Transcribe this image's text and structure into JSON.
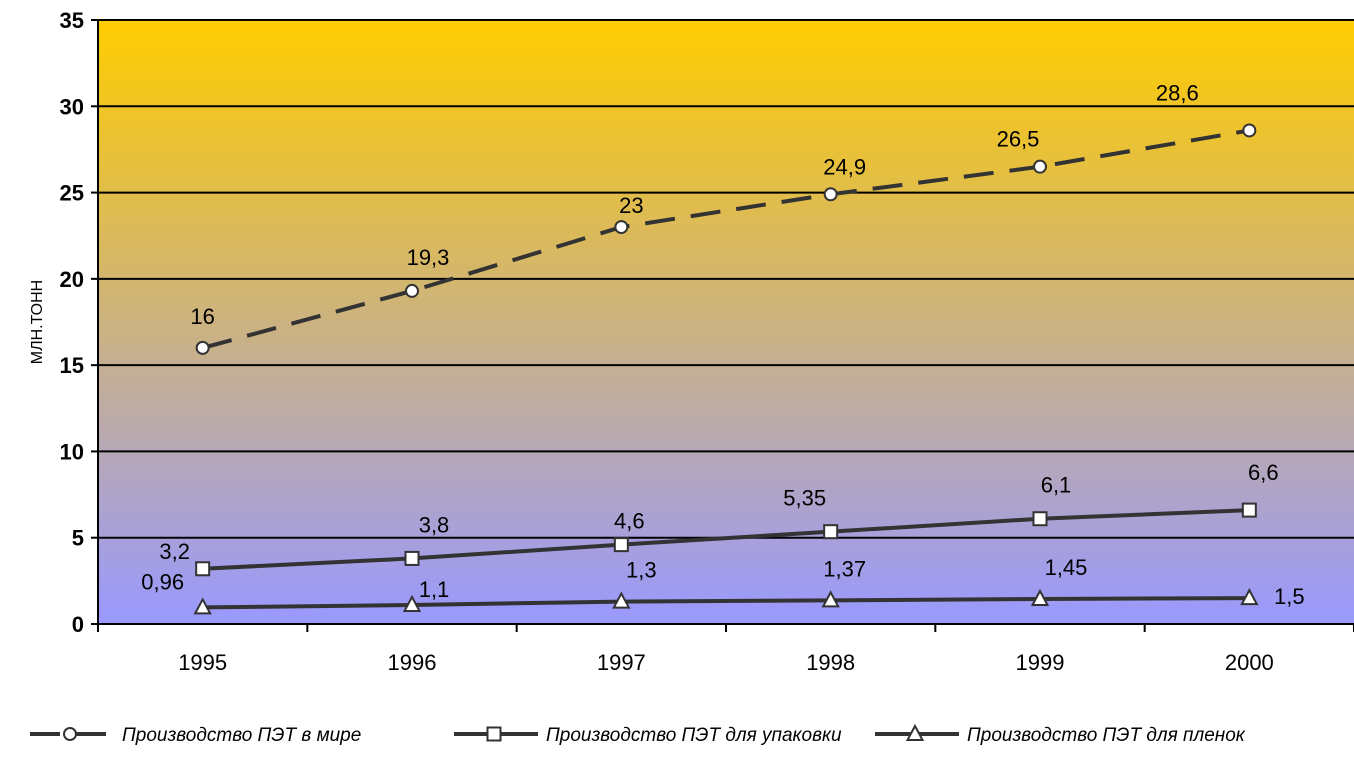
{
  "chart_data": {
    "type": "line",
    "title": "",
    "xlabel": "",
    "ylabel": "МЛН.ТОНН",
    "categories": [
      "1995",
      "1996",
      "1997",
      "1998",
      "1999",
      "2000"
    ],
    "ylim": [
      0,
      35
    ],
    "yticks": [
      "0",
      "5",
      "10",
      "15",
      "20",
      "25",
      "30",
      "35"
    ],
    "grid": true,
    "legend_position": "bottom",
    "series": [
      {
        "name": "Производство ПЭТ в мире",
        "values": [
          16,
          19.3,
          23,
          24.9,
          26.5,
          28.6
        ],
        "labels": [
          "16",
          "19,3",
          "23",
          "24,9",
          "26,5",
          "28,6"
        ],
        "marker": "circle",
        "line_style": "dashed",
        "color": "#333333"
      },
      {
        "name": "Производство ПЭТ для упаковки",
        "values": [
          3.2,
          3.8,
          4.6,
          5.35,
          6.1,
          6.6
        ],
        "labels": [
          "3,2",
          "3,8",
          "4,6",
          "5,35",
          "6,1",
          "6,6"
        ],
        "marker": "square",
        "line_style": "solid",
        "color": "#333333"
      },
      {
        "name": "Производство ПЭТ для пленок",
        "values": [
          0.96,
          1.1,
          1.3,
          1.37,
          1.45,
          1.5
        ],
        "labels": [
          "0,96",
          "1,1",
          "1,3",
          "1,37",
          "1,45",
          "1,5"
        ],
        "marker": "triangle",
        "line_style": "solid",
        "color": "#333333"
      }
    ],
    "background_gradient": [
      "#ffcc00",
      "#9999ff"
    ]
  }
}
